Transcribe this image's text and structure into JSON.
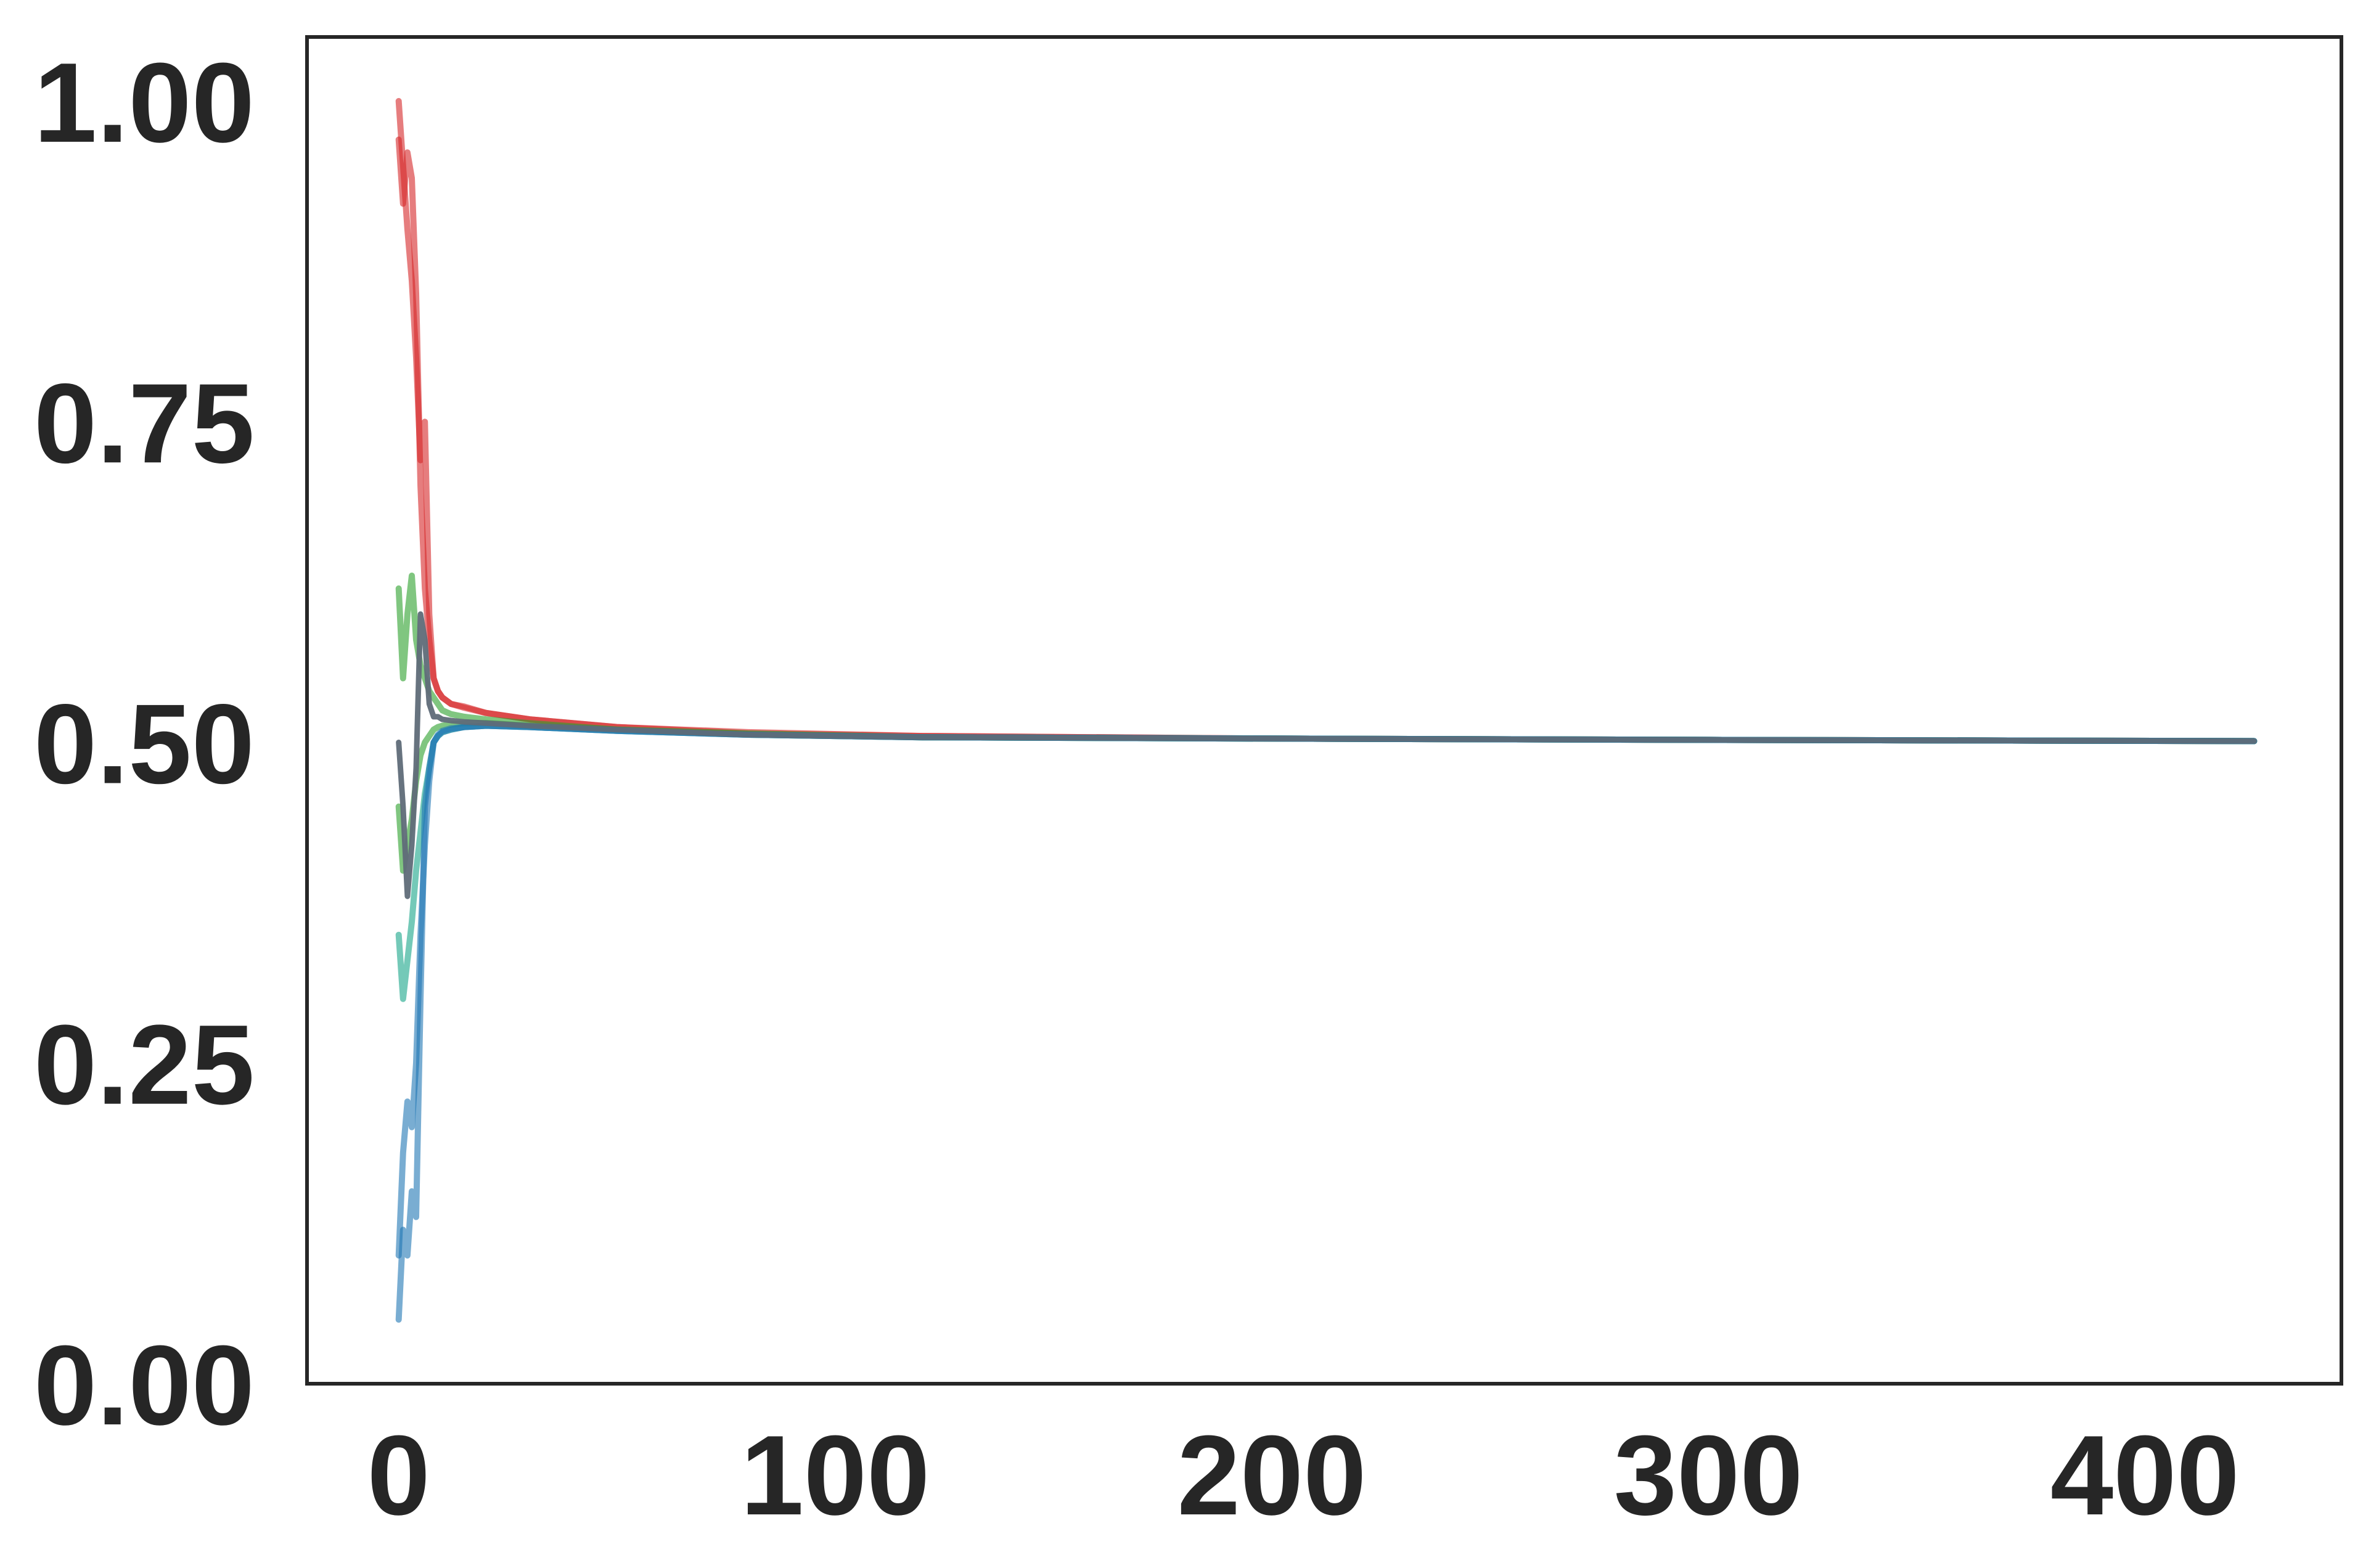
{
  "chart_data": {
    "type": "line",
    "title": "",
    "xlabel": "",
    "ylabel": "",
    "xlim": [
      -21,
      445
    ],
    "ylim": [
      0,
      1.05
    ],
    "x_ticks": [
      0,
      100,
      200,
      300,
      400
    ],
    "x_tick_labels": [
      "0",
      "100",
      "200",
      "300",
      "400"
    ],
    "y_ticks": [
      0.0,
      0.25,
      0.5,
      0.75,
      1.0
    ],
    "y_tick_labels": [
      "0.00",
      "0.25",
      "0.50",
      "0.75",
      "1.00"
    ],
    "grid": false,
    "legend": "none",
    "colors": {
      "red": "#d62728",
      "green": "#2ca02c",
      "blue": "#1f77b4",
      "teal": "#17a589",
      "gray": "#5f6b78",
      "axes": "#262626"
    },
    "series": [
      {
        "color": "red",
        "x": [
          0,
          1,
          2,
          3,
          4,
          5,
          6,
          7,
          8,
          9,
          10,
          12,
          15,
          20,
          30,
          50,
          80,
          120,
          200,
          300,
          425
        ],
        "y": [
          1.0,
          0.95,
          0.9,
          0.86,
          0.8,
          0.72,
          0.75,
          0.6,
          0.55,
          0.54,
          0.535,
          0.53,
          0.528,
          0.523,
          0.518,
          0.512,
          0.508,
          0.505,
          0.503,
          0.502,
          0.501
        ]
      },
      {
        "color": "red",
        "x": [
          0,
          1,
          2,
          3,
          4,
          5,
          6,
          7,
          8,
          9,
          10,
          12,
          15,
          20,
          30,
          50,
          80,
          120,
          200,
          300,
          425
        ],
        "y": [
          0.97,
          0.92,
          0.96,
          0.94,
          0.85,
          0.7,
          0.62,
          0.58,
          0.55,
          0.54,
          0.535,
          0.53,
          0.527,
          0.523,
          0.518,
          0.512,
          0.507,
          0.505,
          0.503,
          0.502,
          0.501
        ]
      },
      {
        "color": "green",
        "x": [
          0,
          1,
          2,
          3,
          4,
          5,
          6,
          7,
          8,
          9,
          10,
          12,
          15,
          20,
          30,
          50,
          80,
          120,
          200,
          300,
          425
        ],
        "y": [
          0.62,
          0.55,
          0.6,
          0.63,
          0.58,
          0.56,
          0.55,
          0.54,
          0.535,
          0.53,
          0.525,
          0.522,
          0.52,
          0.518,
          0.515,
          0.51,
          0.507,
          0.504,
          0.503,
          0.502,
          0.501
        ]
      },
      {
        "color": "green",
        "x": [
          0,
          1,
          2,
          3,
          4,
          5,
          6,
          7,
          8,
          9,
          10,
          12,
          15,
          20,
          30,
          50,
          80,
          120,
          200,
          300,
          425
        ],
        "y": [
          0.45,
          0.4,
          0.42,
          0.44,
          0.47,
          0.49,
          0.5,
          0.505,
          0.51,
          0.512,
          0.513,
          0.514,
          0.515,
          0.515,
          0.513,
          0.51,
          0.506,
          0.504,
          0.503,
          0.502,
          0.501
        ]
      },
      {
        "color": "teal",
        "x": [
          0,
          1,
          2,
          3,
          4,
          5,
          6,
          7,
          8,
          9,
          10,
          12,
          15,
          20,
          30,
          50,
          80,
          120,
          200,
          300,
          425
        ],
        "y": [
          0.35,
          0.3,
          0.33,
          0.36,
          0.4,
          0.43,
          0.46,
          0.48,
          0.5,
          0.505,
          0.508,
          0.51,
          0.512,
          0.513,
          0.512,
          0.509,
          0.506,
          0.504,
          0.503,
          0.502,
          0.501
        ]
      },
      {
        "color": "blue",
        "x": [
          0,
          1,
          2,
          3,
          4,
          5,
          6,
          7,
          8,
          9,
          10,
          12,
          15,
          20,
          30,
          50,
          80,
          120,
          200,
          300,
          425
        ],
        "y": [
          0.05,
          0.12,
          0.1,
          0.15,
          0.13,
          0.3,
          0.45,
          0.48,
          0.5,
          0.505,
          0.508,
          0.51,
          0.512,
          0.513,
          0.512,
          0.509,
          0.506,
          0.504,
          0.503,
          0.502,
          0.501
        ]
      },
      {
        "color": "blue",
        "x": [
          0,
          1,
          2,
          3,
          4,
          5,
          6,
          7,
          8,
          9,
          10,
          12,
          15,
          20,
          30,
          50,
          80,
          120,
          200,
          300,
          425
        ],
        "y": [
          0.1,
          0.18,
          0.22,
          0.2,
          0.25,
          0.35,
          0.42,
          0.47,
          0.5,
          0.506,
          0.509,
          0.511,
          0.512,
          0.513,
          0.512,
          0.509,
          0.506,
          0.504,
          0.503,
          0.502,
          0.501
        ]
      },
      {
        "color": "gray",
        "x": [
          0,
          1,
          2,
          3,
          4,
          5,
          6,
          7,
          8,
          9,
          10,
          12,
          15,
          20,
          30,
          50,
          80,
          120,
          200,
          300,
          425
        ],
        "y": [
          0.5,
          0.45,
          0.38,
          0.42,
          0.48,
          0.6,
          0.58,
          0.53,
          0.52,
          0.52,
          0.518,
          0.517,
          0.516,
          0.515,
          0.513,
          0.51,
          0.506,
          0.504,
          0.503,
          0.502,
          0.501
        ]
      }
    ]
  }
}
